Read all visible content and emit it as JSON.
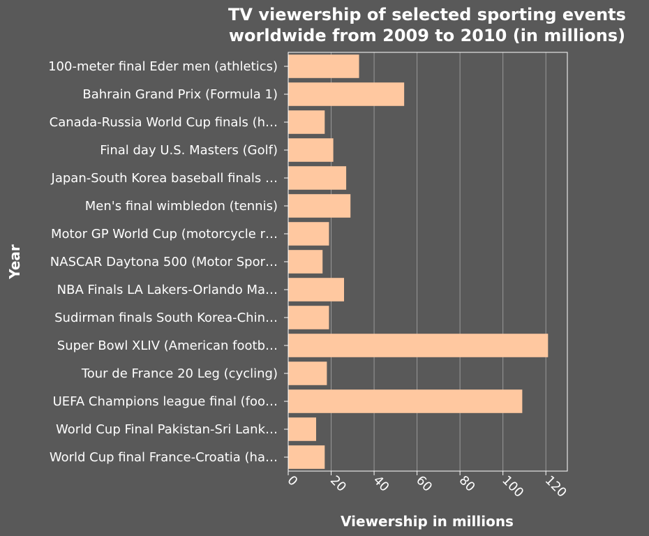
{
  "chart_data": {
    "type": "bar",
    "orientation": "horizontal",
    "title_lines": [
      "TV viewership of selected sporting events",
      "worldwide from 2009 to 2010 (in millions)"
    ],
    "xlabel": "Viewership in millions",
    "ylabel": "Year",
    "xlim": [
      0,
      130
    ],
    "xticks": [
      0,
      20,
      40,
      60,
      80,
      100,
      120
    ],
    "grid": true,
    "bar_color": "#ffc8a0",
    "categories": [
      "100-meter final Eder men (athletics)",
      "Bahrain Grand Prix (Formula 1)",
      "Canada-Russia World Cup finals (h…",
      "Final day U.S. Masters (Golf)",
      "Japan-South Korea baseball finals …",
      "Men's final wimbledon (tennis)",
      "Motor GP World Cup (motorcycle r…",
      "NASCAR Daytona 500 (Motor Spor…",
      "NBA Finals LA Lakers-Orlando Ma…",
      "Sudirman finals South Korea-Chin…",
      "Super Bowl XLIV (American footb…",
      "Tour de France 20 Leg (cycling)",
      "UEFA Champions league final (foo…",
      "World Cup Final Pakistan-Sri Lank…",
      "World Cup final France-Croatia (ha…"
    ],
    "values": [
      33,
      54,
      17,
      21,
      27,
      29,
      19,
      16,
      26,
      19,
      121,
      18,
      109,
      13,
      17
    ]
  }
}
